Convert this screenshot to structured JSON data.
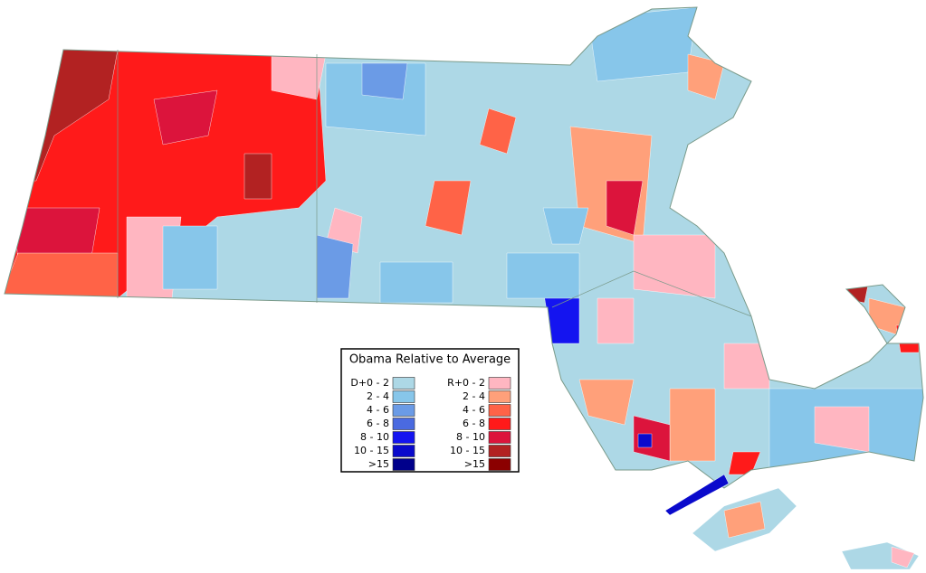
{
  "legend": {
    "title": "Obama Relative to Average",
    "democrat": [
      {
        "label": "D+0  -  2",
        "color": "#add8e6"
      },
      {
        "label": "2  -  4",
        "color": "#87c6ea"
      },
      {
        "label": "4  -  6",
        "color": "#6b9be6"
      },
      {
        "label": "6  -  8",
        "color": "#4a6ae0"
      },
      {
        "label": "8  - 10",
        "color": "#1414f0"
      },
      {
        "label": "10  - 15",
        "color": "#0a0acc"
      },
      {
        "label": ">15",
        "color": "#00008b"
      }
    ],
    "republican": [
      {
        "label": "R+0  -  2",
        "color": "#ffb6c1"
      },
      {
        "label": "2  -  4",
        "color": "#ffa07a"
      },
      {
        "label": "4  -  6",
        "color": "#ff6347"
      },
      {
        "label": "6  -  8",
        "color": "#ff1a1a"
      },
      {
        "label": "8  - 10",
        "color": "#dc143c"
      },
      {
        "label": "10  - 15",
        "color": "#b22222"
      },
      {
        "label": ">15",
        "color": "#8b0000"
      }
    ]
  }
}
